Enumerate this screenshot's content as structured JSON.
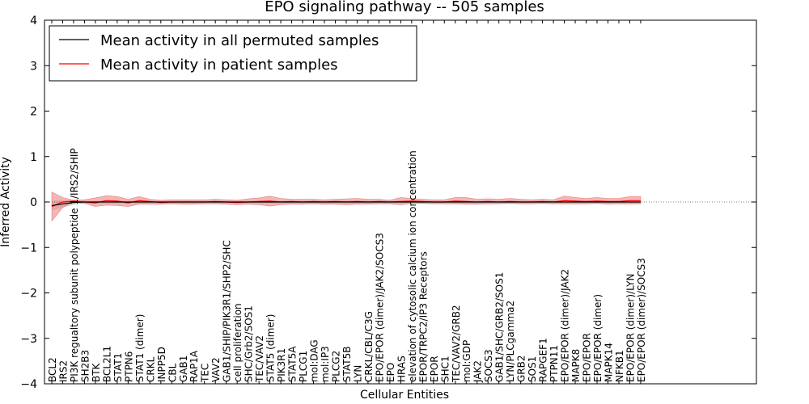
{
  "chart_data": {
    "type": "line",
    "title": "EPO signaling pathway -- 505 samples",
    "xlabel": "Cellular Entities",
    "ylabel": "Inferred Activity",
    "ylim": [
      -4,
      4
    ],
    "yticks": [
      "4",
      "3",
      "2",
      "1",
      "0",
      "−1",
      "−2",
      "−3",
      "−4"
    ],
    "grid": false,
    "legend_position": "top-left",
    "categories": [
      "BCL2",
      "IRS2",
      "PI3K regualtory subunit polypeptide 1/IRS2/SHIP",
      "SH2B3",
      "BTK",
      "BCL2L1",
      "STAT1",
      "PTPN6",
      "STAT1 (dimer)",
      "CRKL",
      "INPP5D",
      "CBL",
      "GAB1",
      "RAP1A",
      "TEC",
      "VAV2",
      "GAB1/SHIP/PIK3R1/SHP2/SHC",
      "cell proliferation",
      "SHC/Grb2/SOS1",
      "TEC/VAV2",
      "STAT5 (dimer)",
      "PIK3R1",
      "STAT5A",
      "PLCG1",
      "mol:DAG",
      "mol:IP3",
      "PLCG2",
      "STAT5B",
      "LYN",
      "CRKL/CBL/C3G",
      "EPO/EPOR (dimer)/JAK2/SOCS3",
      "EPO",
      "HRAS",
      "elevation of cytosolic calcium ion concentration",
      "EPOR/TRPC2/IP3 Receptors",
      "EPOR",
      "SHC1",
      "TEC/VAV2/GRB2",
      "mol:GDP",
      "JAK2",
      "SOCS3",
      "GAB1/SHC/GRB2/SOS1",
      "LYN/PLCgamma2",
      "GRB2",
      "SOS1",
      "RAPGEF1",
      "PTPN11",
      "EPO/EPOR (dimer)/JAK2",
      "MAPK8",
      "EPO/EPOR",
      "EPO/EPOR (dimer)",
      "MAPK14",
      "NFKB1",
      "EPO/EPOR (dimer)/LYN",
      "EPO/EPOR (dimer)/SOCS3"
    ],
    "series": [
      {
        "name": "Mean activity in all permuted samples",
        "color": "#000000",
        "values": [
          -0.08,
          -0.04,
          -0.01,
          0.0,
          0.0,
          0.0,
          0.0,
          0.0,
          0.0,
          0.0,
          0.0,
          0.0,
          0.0,
          0.0,
          0.0,
          0.0,
          0.0,
          0.0,
          0.0,
          0.0,
          0.0,
          0.0,
          0.0,
          0.0,
          0.0,
          0.0,
          0.0,
          0.0,
          0.0,
          0.0,
          0.0,
          0.0,
          0.0,
          0.0,
          0.0,
          0.0,
          0.0,
          0.0,
          0.0,
          0.0,
          0.0,
          0.0,
          0.0,
          0.0,
          0.0,
          0.0,
          0.0,
          0.0,
          0.0,
          0.0,
          0.0,
          0.0,
          0.0,
          0.0,
          0.0
        ],
        "band_upper": [
          0.03,
          0.04,
          0.03,
          0.03,
          0.03,
          0.03,
          0.03,
          0.03,
          0.03,
          0.03,
          0.03,
          0.03,
          0.03,
          0.03,
          0.03,
          0.03,
          0.03,
          0.03,
          0.03,
          0.03,
          0.03,
          0.03,
          0.03,
          0.03,
          0.03,
          0.03,
          0.03,
          0.03,
          0.03,
          0.03,
          0.03,
          0.03,
          0.03,
          0.03,
          0.03,
          0.03,
          0.03,
          0.03,
          0.03,
          0.03,
          0.03,
          0.03,
          0.03,
          0.03,
          0.03,
          0.03,
          0.03,
          0.03,
          0.03,
          0.03,
          0.03,
          0.03,
          0.03,
          0.03,
          0.03
        ],
        "band_lower": [
          -0.18,
          -0.12,
          -0.06,
          -0.04,
          -0.04,
          -0.04,
          -0.04,
          -0.04,
          -0.04,
          -0.04,
          -0.04,
          -0.04,
          -0.04,
          -0.04,
          -0.04,
          -0.04,
          -0.04,
          -0.04,
          -0.04,
          -0.04,
          -0.04,
          -0.04,
          -0.04,
          -0.04,
          -0.04,
          -0.04,
          -0.04,
          -0.04,
          -0.04,
          -0.04,
          -0.04,
          -0.04,
          -0.04,
          -0.04,
          -0.04,
          -0.04,
          -0.04,
          -0.04,
          -0.04,
          -0.04,
          -0.04,
          -0.04,
          -0.04,
          -0.04,
          -0.04,
          -0.04,
          -0.04,
          -0.04,
          -0.04,
          -0.04,
          -0.04,
          -0.04,
          -0.04,
          -0.04,
          -0.04
        ]
      },
      {
        "name": "Mean activity in patient samples",
        "color": "#ff0000",
        "values": [
          -0.1,
          0.0,
          0.02,
          0.0,
          -0.02,
          0.03,
          0.02,
          -0.02,
          0.03,
          0.01,
          -0.01,
          0.0,
          0.0,
          0.0,
          0.0,
          0.01,
          0.0,
          -0.01,
          0.0,
          0.01,
          0.02,
          0.0,
          0.01,
          0.0,
          0.01,
          0.0,
          0.01,
          0.0,
          0.01,
          0.0,
          0.01,
          0.0,
          0.01,
          0.02,
          0.01,
          0.0,
          0.0,
          0.02,
          0.01,
          0.0,
          0.01,
          0.0,
          0.01,
          0.0,
          0.0,
          0.01,
          0.0,
          0.03,
          0.02,
          0.01,
          0.02,
          0.01,
          0.01,
          0.03,
          0.03
        ],
        "band_upper": [
          0.22,
          0.1,
          0.04,
          0.05,
          0.09,
          0.14,
          0.12,
          0.06,
          0.12,
          0.06,
          0.04,
          0.05,
          0.05,
          0.05,
          0.05,
          0.06,
          0.05,
          0.04,
          0.07,
          0.09,
          0.13,
          0.08,
          0.06,
          0.06,
          0.06,
          0.05,
          0.06,
          0.07,
          0.08,
          0.06,
          0.06,
          0.04,
          0.1,
          0.08,
          0.06,
          0.05,
          0.05,
          0.1,
          0.1,
          0.06,
          0.07,
          0.06,
          0.08,
          0.06,
          0.05,
          0.06,
          0.05,
          0.13,
          0.1,
          0.08,
          0.1,
          0.08,
          0.08,
          0.12,
          0.12
        ],
        "band_lower": [
          -0.42,
          -0.12,
          0.0,
          -0.03,
          -0.1,
          -0.07,
          -0.08,
          -0.1,
          -0.05,
          -0.05,
          -0.05,
          -0.04,
          -0.05,
          -0.05,
          -0.04,
          -0.04,
          -0.05,
          -0.06,
          -0.05,
          -0.06,
          -0.09,
          -0.06,
          -0.05,
          -0.05,
          -0.04,
          -0.05,
          -0.05,
          -0.06,
          -0.05,
          -0.05,
          -0.04,
          -0.04,
          -0.06,
          -0.03,
          -0.03,
          -0.04,
          -0.04,
          -0.04,
          -0.05,
          -0.05,
          -0.04,
          -0.04,
          -0.03,
          -0.04,
          -0.04,
          -0.03,
          -0.04,
          -0.04,
          -0.04,
          -0.04,
          -0.03,
          -0.05,
          -0.04,
          -0.04,
          -0.04
        ]
      }
    ]
  }
}
